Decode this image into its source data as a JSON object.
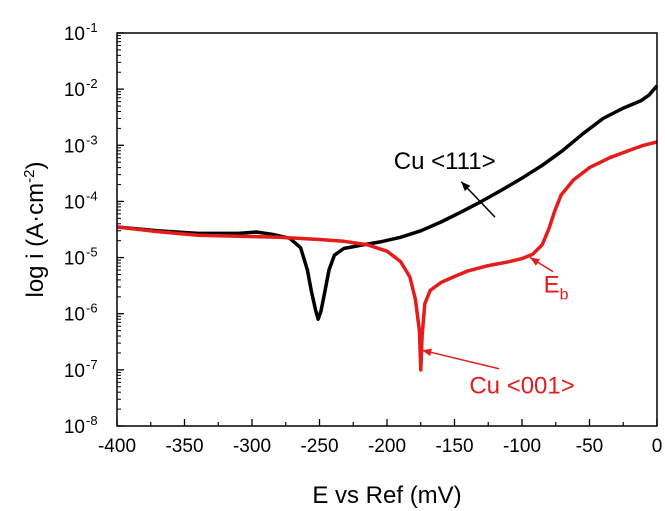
{
  "chart_data": {
    "type": "line",
    "xlabel": "E vs Ref (mV)",
    "ylabel": "log i (A·cm",
    "ylabel_sup": "-2",
    "ylabel_close": ")",
    "xlim": [
      -400,
      0
    ],
    "x_ticks": [
      {
        "value": -400,
        "label": "-400"
      },
      {
        "value": -350,
        "label": "-350"
      },
      {
        "value": -300,
        "label": "-300"
      },
      {
        "value": -250,
        "label": "-250"
      },
      {
        "value": -200,
        "label": "-200"
      },
      {
        "value": -150,
        "label": "-150"
      },
      {
        "value": -100,
        "label": "-100"
      },
      {
        "value": -50,
        "label": "-50"
      },
      {
        "value": 0,
        "label": "0"
      }
    ],
    "y_scale": "log",
    "ylim_exp": [
      -8,
      -1
    ],
    "y_ticks": [
      {
        "exp": -1,
        "base": "10",
        "sup": "-1"
      },
      {
        "exp": -2,
        "base": "10",
        "sup": "-2"
      },
      {
        "exp": -3,
        "base": "10",
        "sup": "-3"
      },
      {
        "exp": -4,
        "base": "10",
        "sup": "-4"
      },
      {
        "exp": -5,
        "base": "10",
        "sup": "-5"
      },
      {
        "exp": -6,
        "base": "10",
        "sup": "-6"
      },
      {
        "exp": -7,
        "base": "10",
        "sup": "-7"
      },
      {
        "exp": -8,
        "base": "10",
        "sup": "-8"
      }
    ],
    "grid": false,
    "legend": "none",
    "series": [
      {
        "color": "#000000",
        "points": [
          [
            -400,
            3.5e-05
          ],
          [
            -370,
            3e-05
          ],
          [
            -340,
            2.7e-05
          ],
          [
            -310,
            2.7e-05
          ],
          [
            -297,
            2.85e-05
          ],
          [
            -285,
            2.6e-05
          ],
          [
            -272,
            2.2e-05
          ],
          [
            -264,
            1.5e-05
          ],
          [
            -259,
            6e-06
          ],
          [
            -256,
            2.5e-06
          ],
          [
            -253,
            1.2e-06
          ],
          [
            -251,
            8e-07
          ],
          [
            -249,
            1.1e-06
          ],
          [
            -246,
            2.5e-06
          ],
          [
            -243,
            6e-06
          ],
          [
            -239,
            1.1e-05
          ],
          [
            -232,
            1.45e-05
          ],
          [
            -220,
            1.65e-05
          ],
          [
            -205,
            1.9e-05
          ],
          [
            -190,
            2.3e-05
          ],
          [
            -175,
            3e-05
          ],
          [
            -160,
            4.3e-05
          ],
          [
            -145,
            6.5e-05
          ],
          [
            -130,
            0.0001
          ],
          [
            -115,
            0.00016
          ],
          [
            -100,
            0.00026
          ],
          [
            -85,
            0.00044
          ],
          [
            -70,
            0.0008
          ],
          [
            -55,
            0.0016
          ],
          [
            -40,
            0.003
          ],
          [
            -25,
            0.0046
          ],
          [
            -12,
            0.0062
          ],
          [
            -6,
            0.0078
          ],
          [
            0,
            0.0115
          ]
        ]
      },
      {
        "color": "#e51c1c",
        "points": [
          [
            -400,
            3.5e-05
          ],
          [
            -370,
            2.9e-05
          ],
          [
            -340,
            2.5e-05
          ],
          [
            -310,
            2.4e-05
          ],
          [
            -280,
            2.3e-05
          ],
          [
            -250,
            2.1e-05
          ],
          [
            -232,
            1.95e-05
          ],
          [
            -215,
            1.7e-05
          ],
          [
            -200,
            1.3e-05
          ],
          [
            -190,
            8.5e-06
          ],
          [
            -183,
            4.5e-06
          ],
          [
            -179,
            1.8e-06
          ],
          [
            -176,
            5e-07
          ],
          [
            -175,
            1e-07
          ],
          [
            -174,
            4e-07
          ],
          [
            -172,
            1.5e-06
          ],
          [
            -168,
            2.6e-06
          ],
          [
            -160,
            3.6e-06
          ],
          [
            -150,
            4.6e-06
          ],
          [
            -140,
            5.8e-06
          ],
          [
            -125,
            7.2e-06
          ],
          [
            -110,
            8.4e-06
          ],
          [
            -100,
            9.6e-06
          ],
          [
            -92,
            1.15e-05
          ],
          [
            -85,
            1.7e-05
          ],
          [
            -80,
            3.3e-05
          ],
          [
            -76,
            6.5e-05
          ],
          [
            -71,
            0.00013
          ],
          [
            -62,
            0.00024
          ],
          [
            -50,
            0.0004
          ],
          [
            -35,
            0.0006
          ],
          [
            -20,
            0.00082
          ],
          [
            -10,
            0.001
          ],
          [
            0,
            0.00115
          ]
        ]
      }
    ],
    "annotations": [
      {
        "text": "Cu <111>",
        "color": "#000000",
        "x": -195,
        "y_exp": -3.42,
        "arrow_from": [
          -145,
          -3.65
        ],
        "arrow_to": [
          -120,
          -4.28
        ]
      },
      {
        "text": "E",
        "sub": "b",
        "color": "#e51c1c",
        "x": -84,
        "y_exp": -5.62,
        "arrow_from": [
          -94,
          -5.0
        ],
        "arrow_to": [
          -77,
          -5.25
        ]
      },
      {
        "text": "Cu <001>",
        "color": "#e51c1c",
        "x": -139,
        "y_exp": -7.42,
        "arrow_from": [
          -174,
          -6.65
        ],
        "arrow_to": [
          -117,
          -6.98
        ]
      }
    ]
  }
}
